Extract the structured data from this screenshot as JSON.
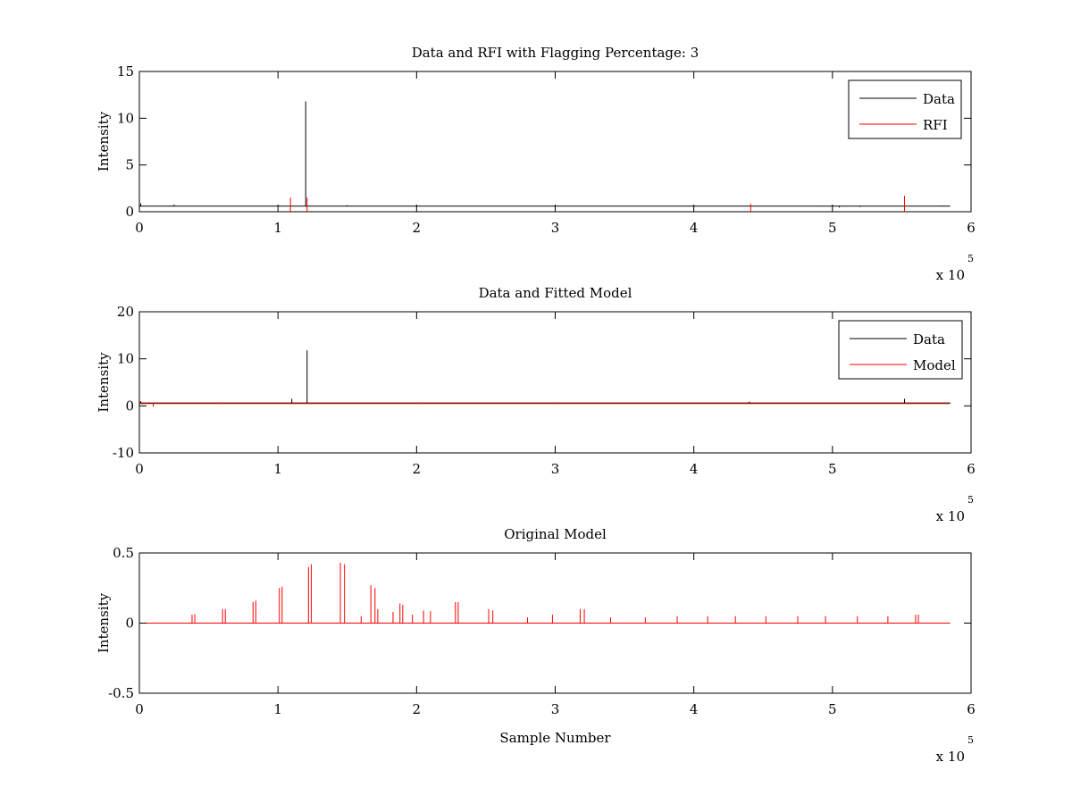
{
  "chart_data": [
    {
      "type": "line",
      "title": "Data and RFI with Flagging Percentage: 3",
      "xlabel": "",
      "ylabel": "Intensity",
      "xlim": [
        0,
        600000
      ],
      "ylim": [
        0,
        15
      ],
      "xticks": [
        "0",
        "1",
        "2",
        "3",
        "4",
        "5",
        "6"
      ],
      "xtick_values": [
        0,
        100000,
        200000,
        300000,
        400000,
        500000,
        600000
      ],
      "yticks": [
        "0",
        "5",
        "10",
        "15"
      ],
      "ytick_values": [
        0,
        5,
        10,
        15
      ],
      "x_multiplier": "x 10",
      "x_exponent": "5",
      "grid": false,
      "legend": "top-right",
      "series": [
        {
          "name": "Data",
          "color": "#000000",
          "baseline": 0.6,
          "spikes": [
            [
              1000,
              0.9
            ],
            [
              25000,
              0.75
            ],
            [
              120000,
              11.8
            ],
            [
              150000,
              0.7
            ],
            [
              490000,
              0.55
            ],
            [
              505000,
              0.45
            ],
            [
              520000,
              0.5
            ],
            [
              580000,
              0.65
            ]
          ]
        },
        {
          "name": "RFI",
          "color": "#ff0000",
          "spikes": [
            [
              109000,
              1.5
            ],
            [
              121000,
              1.5
            ],
            [
              441000,
              0.85
            ],
            [
              552000,
              1.7
            ]
          ]
        }
      ]
    },
    {
      "type": "line",
      "title": "Data and Fitted Model",
      "xlabel": "",
      "ylabel": "Intensity",
      "xlim": [
        0,
        600000
      ],
      "ylim": [
        -10,
        20
      ],
      "xticks": [
        "0",
        "1",
        "2",
        "3",
        "4",
        "5",
        "6"
      ],
      "xtick_values": [
        0,
        100000,
        200000,
        300000,
        400000,
        500000,
        600000
      ],
      "yticks": [
        "-10",
        "0",
        "10",
        "20"
      ],
      "ytick_values": [
        -10,
        0,
        10,
        20
      ],
      "x_multiplier": "x 10",
      "x_exponent": "5",
      "grid": false,
      "legend": "top-right",
      "series": [
        {
          "name": "Data",
          "color": "#000000",
          "baseline": 0.6,
          "spikes": [
            [
              1000,
              1.0
            ],
            [
              110000,
              1.5
            ],
            [
              121000,
              11.8
            ],
            [
              440000,
              0.9
            ],
            [
              552000,
              1.5
            ]
          ]
        },
        {
          "name": "Model",
          "color": "#ff0000",
          "baseline": 0.5,
          "spikes": [
            [
              10000,
              -0.2
            ],
            [
              60000,
              0.7
            ],
            [
              200000,
              0.7
            ],
            [
              300000,
              0.6
            ],
            [
              450000,
              0.55
            ]
          ]
        }
      ]
    },
    {
      "type": "line",
      "title": "Original Model",
      "xlabel": "Sample Number",
      "ylabel": "Intensity",
      "xlim": [
        0,
        600000
      ],
      "ylim": [
        -0.5,
        0.5
      ],
      "xticks": [
        "0",
        "1",
        "2",
        "3",
        "4",
        "5",
        "6"
      ],
      "xtick_values": [
        0,
        100000,
        200000,
        300000,
        400000,
        500000,
        600000
      ],
      "yticks": [
        "-0.5",
        "0",
        "0.5"
      ],
      "ytick_values": [
        -0.5,
        0,
        0.5
      ],
      "x_multiplier": "x 10",
      "x_exponent": "5",
      "grid": false,
      "series": [
        {
          "color": "#ff0000",
          "baseline": 0,
          "spikes": [
            [
              38000,
              0.06
            ],
            [
              40000,
              0.065
            ],
            [
              60000,
              0.1
            ],
            [
              62000,
              0.1
            ],
            [
              82000,
              0.15
            ],
            [
              84000,
              0.16
            ],
            [
              101000,
              0.25
            ],
            [
              103000,
              0.26
            ],
            [
              122000,
              0.4
            ],
            [
              124000,
              0.42
            ],
            [
              145000,
              0.43
            ],
            [
              148000,
              0.42
            ],
            [
              160000,
              0.05
            ],
            [
              167000,
              0.27
            ],
            [
              170000,
              0.25
            ],
            [
              172000,
              0.1
            ],
            [
              183000,
              0.08
            ],
            [
              188000,
              0.14
            ],
            [
              190000,
              0.13
            ],
            [
              197000,
              0.06
            ],
            [
              205000,
              0.09
            ],
            [
              210000,
              0.085
            ],
            [
              228000,
              0.15
            ],
            [
              230000,
              0.15
            ],
            [
              252000,
              0.1
            ],
            [
              255000,
              0.09
            ],
            [
              280000,
              0.04
            ],
            [
              298000,
              0.06
            ],
            [
              318000,
              0.1
            ],
            [
              321000,
              0.1
            ],
            [
              340000,
              0.04
            ],
            [
              365000,
              0.04
            ],
            [
              388000,
              0.05
            ],
            [
              410000,
              0.05
            ],
            [
              430000,
              0.05
            ],
            [
              452000,
              0.05
            ],
            [
              475000,
              0.05
            ],
            [
              495000,
              0.05
            ],
            [
              518000,
              0.05
            ],
            [
              540000,
              0.05
            ],
            [
              560000,
              0.06
            ],
            [
              562000,
              0.06
            ]
          ]
        }
      ]
    }
  ]
}
